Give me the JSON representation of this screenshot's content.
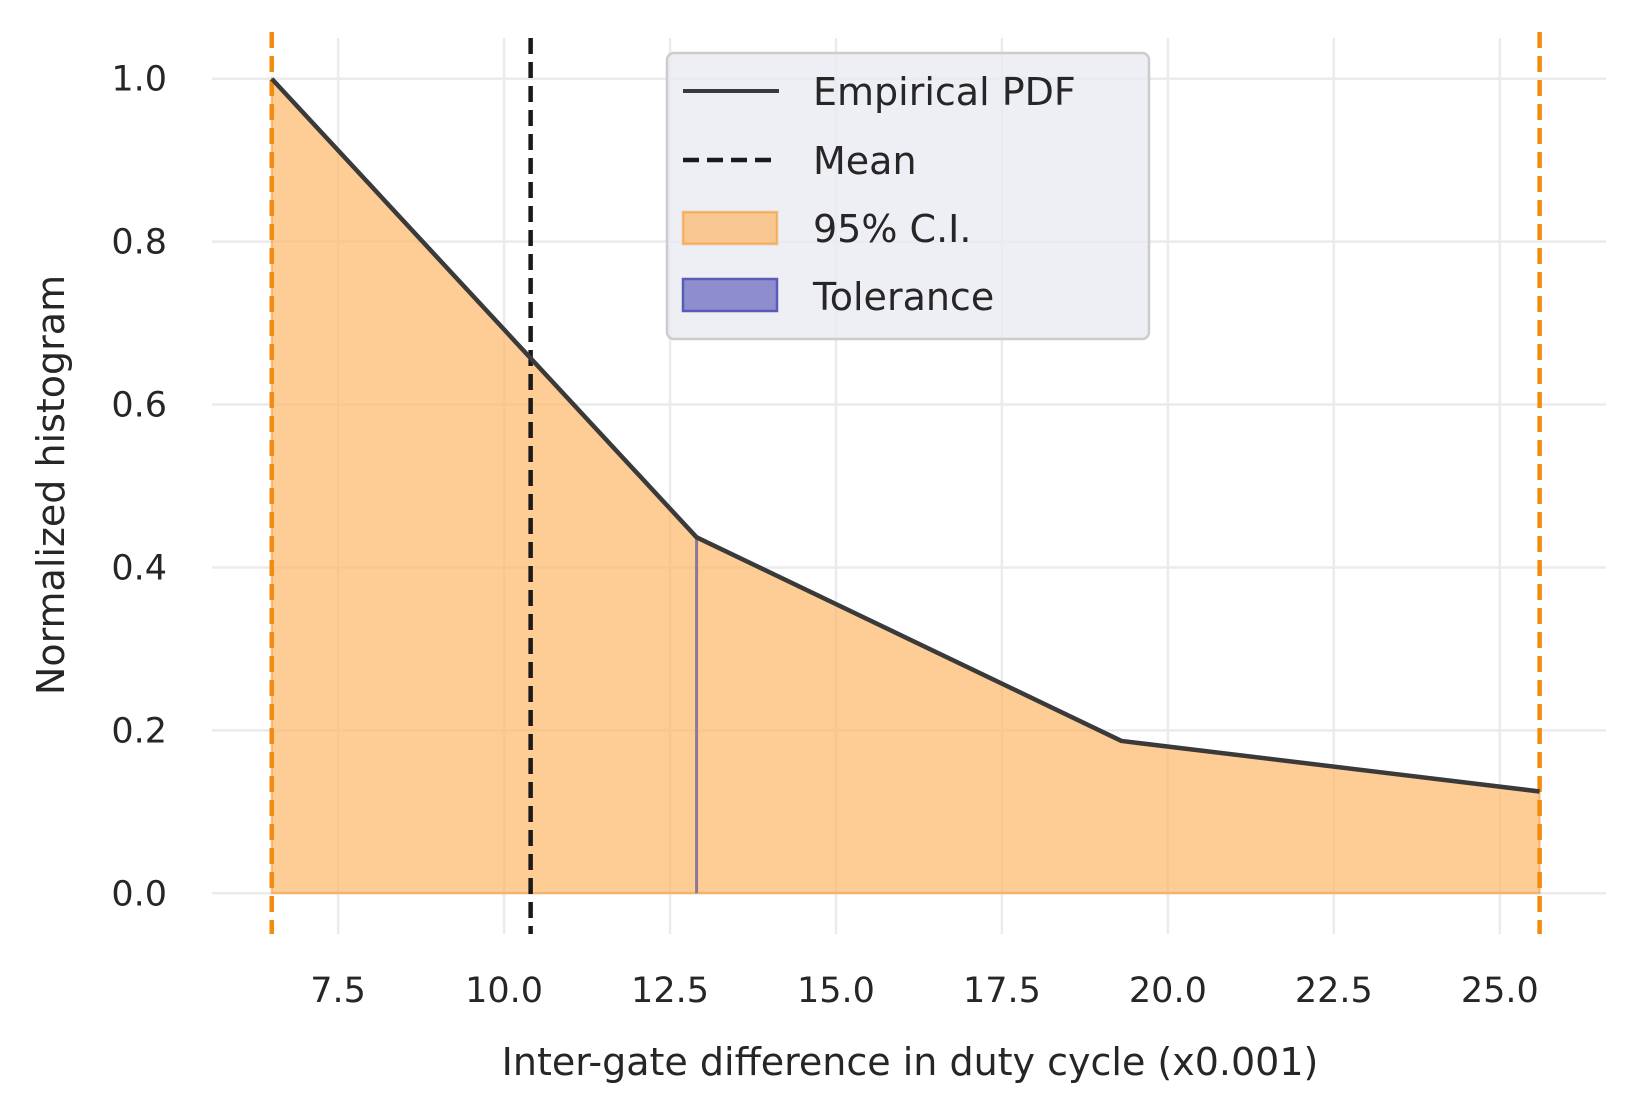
{
  "chart_data": {
    "type": "line",
    "title": "",
    "xlabel": "Inter-gate difference in duty cycle  (x0.001)",
    "ylabel": "Normalized histogram",
    "xlim": [
      5.6,
      26.6
    ],
    "ylim": [
      -0.05,
      1.05
    ],
    "xticks": [
      7.5,
      10.0,
      12.5,
      15.0,
      17.5,
      20.0,
      22.5,
      25.0
    ],
    "xtick_labels": [
      "7.5",
      "10.0",
      "12.5",
      "15.0",
      "17.5",
      "20.0",
      "22.5",
      "25.0"
    ],
    "yticks": [
      0.0,
      0.2,
      0.4,
      0.6,
      0.8,
      1.0
    ],
    "ytick_labels": [
      "0.0",
      "0.2",
      "0.4",
      "0.6",
      "0.8",
      "1.0"
    ],
    "grid": true,
    "legend_position": "top-center",
    "series": [
      {
        "name": "Empirical PDF",
        "x": [
          6.5,
          12.9,
          19.3,
          25.6
        ],
        "y": [
          1.0,
          0.437,
          0.187,
          0.125
        ],
        "color": "#3a3a3a"
      }
    ],
    "mean": {
      "name": "Mean",
      "x": 10.4,
      "color": "#1a1a1a"
    },
    "confidence_interval": {
      "name": "95% C.I.",
      "x_low": 6.5,
      "x_high": 25.6,
      "fill_color": "#fdb668",
      "line_color": "#f28c0f"
    },
    "tolerance": {
      "name": "Tolerance",
      "x": 12.9,
      "color": "#8b7a96",
      "legend_color": "#5a5ab8"
    },
    "legend": [
      "Empirical PDF",
      "Mean",
      "95% C.I.",
      "Tolerance"
    ]
  }
}
